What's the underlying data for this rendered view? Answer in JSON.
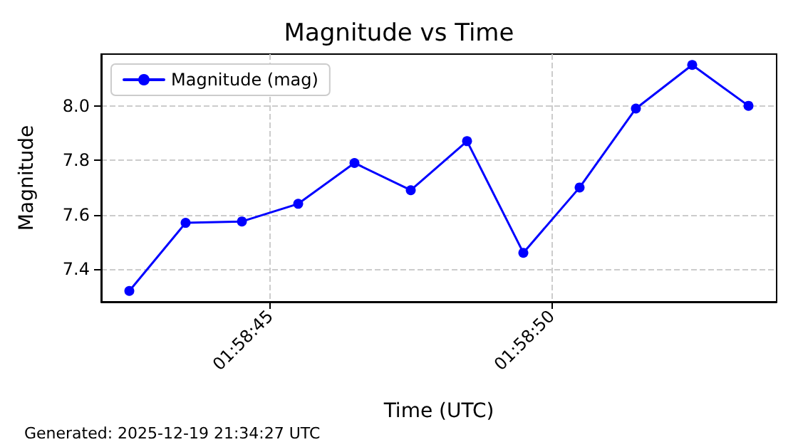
{
  "chart_data": {
    "type": "line",
    "title": "Magnitude vs Time",
    "xlabel": "Time (UTC)",
    "ylabel": "Magnitude",
    "x": [
      1.9784722,
      1.97875,
      1.9790278,
      1.9793056,
      1.9795833,
      1.9798611,
      1.9801389,
      1.9804167,
      1.9806944,
      1.9809722,
      1.98125,
      1.9815278
    ],
    "series": [
      {
        "name": "Magnitude (mag)",
        "color": "#0000ff",
        "values": [
          7.32,
          7.57,
          7.575,
          7.64,
          7.79,
          7.69,
          7.87,
          7.46,
          7.7,
          7.99,
          8.15,
          8.0
        ]
      }
    ],
    "xlim": [
      1.9783333,
      1.9816667
    ],
    "xticks": [
      {
        "value": 1.9791667,
        "label": "01:58:45"
      },
      {
        "value": 1.9805556,
        "label": "01:58:50"
      }
    ],
    "ylim": [
      7.28,
      8.19
    ],
    "yticks": [
      7.4,
      7.6,
      7.8,
      {
        "value": 8,
        "label": "8.0"
      }
    ],
    "grid": true,
    "legend": "top left",
    "marker": "circle",
    "line_style": "solid",
    "annotations": [
      "Generated: 2025-12-19 21:34:27 UTC"
    ]
  }
}
